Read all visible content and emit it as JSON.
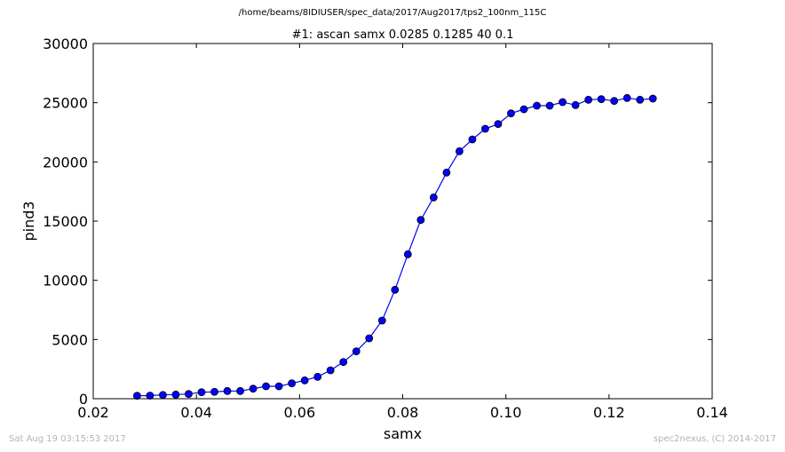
{
  "suptitle": "/home/beams/8IDIUSER/spec_data/2017/Aug2017/tps2_100nm_115C",
  "footer": {
    "timestamp": "Sat Aug 19 03:15:53 2017",
    "credit": "spec2nexus, (C) 2014-2017"
  },
  "colors": {
    "series": "#0000ff",
    "axes": "#000000"
  },
  "chart_data": {
    "type": "line",
    "title": "#1: ascan  samx 0.0285 0.1285  40 0.1",
    "xlabel": "samx",
    "ylabel": "pind3",
    "xlim": [
      0.02,
      0.14
    ],
    "ylim": [
      0,
      30000
    ],
    "xticks": [
      "0.02",
      "0.04",
      "0.06",
      "0.08",
      "0.10",
      "0.12",
      "0.14"
    ],
    "yticks": [
      "0",
      "5000",
      "10000",
      "15000",
      "20000",
      "25000",
      "30000"
    ],
    "grid": false,
    "marker": "circle",
    "series": [
      {
        "x": [
          0.0285,
          0.031,
          0.0335,
          0.036,
          0.0385,
          0.041,
          0.0435,
          0.046,
          0.0485,
          0.051,
          0.0535,
          0.056,
          0.0585,
          0.061,
          0.0635,
          0.066,
          0.0685,
          0.071,
          0.0735,
          0.076,
          0.0785,
          0.081,
          0.0835,
          0.086,
          0.0885,
          0.091,
          0.0935,
          0.096,
          0.0985,
          0.101,
          0.1035,
          0.106,
          0.1085,
          0.111,
          0.1135,
          0.116,
          0.1185,
          0.121,
          0.1235,
          0.126,
          0.1285
        ],
        "y": [
          250,
          260,
          320,
          350,
          400,
          550,
          580,
          650,
          650,
          850,
          1050,
          1050,
          1300,
          1550,
          1850,
          2400,
          3100,
          4000,
          5100,
          6600,
          9200,
          12200,
          15100,
          17000,
          19100,
          20900,
          21900,
          22800,
          23200,
          24100,
          24450,
          24750,
          24750,
          25050,
          24800,
          25250,
          25300,
          25150,
          25400,
          25250,
          25350
        ]
      }
    ]
  }
}
